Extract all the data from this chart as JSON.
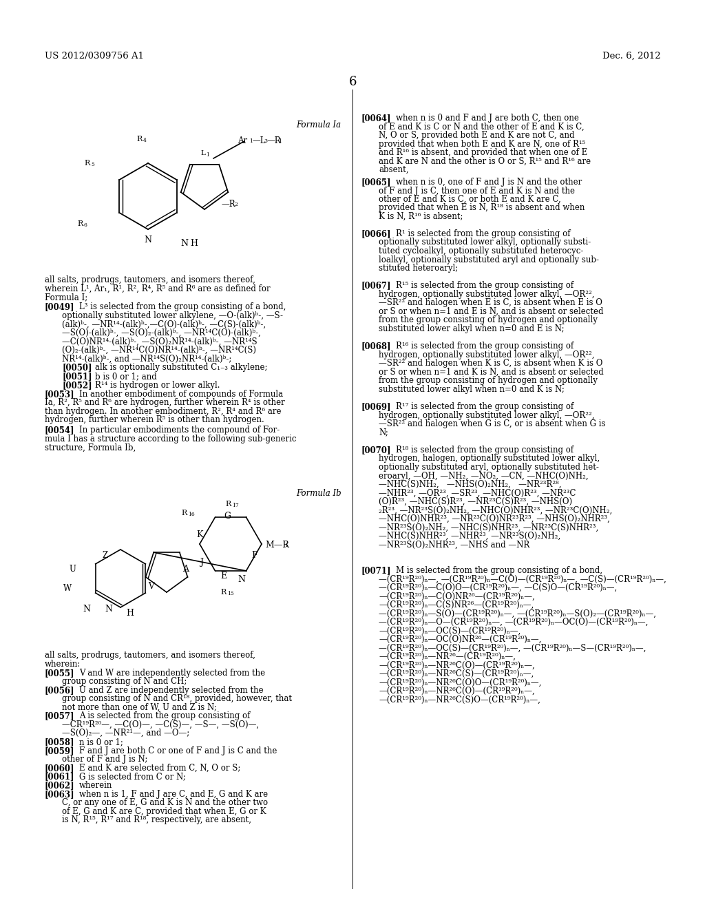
{
  "header_left": "US 2012/0309756 A1",
  "header_right": "Dec. 6, 2012",
  "page_number": "6",
  "background_color": "#ffffff",
  "text_color": "#000000",
  "font_size_body": 8.5,
  "font_size_header": 9.5,
  "font_size_page": 13.0
}
